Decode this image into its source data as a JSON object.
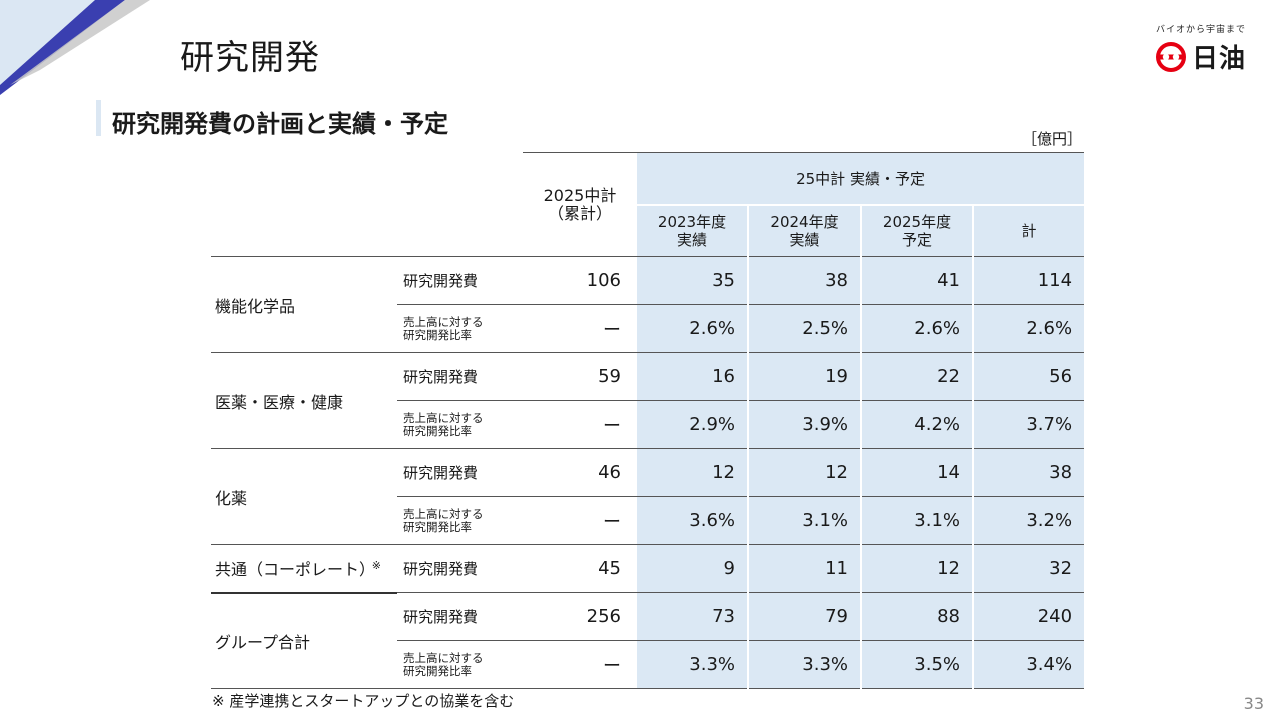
{
  "page": {
    "title": "研究開発",
    "section_title": "研究開発費の計画と実績・予定",
    "unit": "［億円］",
    "footnote": "※ 産学連携とスタートアップとの協業を含む",
    "page_number": "33"
  },
  "logo": {
    "tagline": "バイオから宇宙まで",
    "name": "日油",
    "icon": "nof-logo-mark",
    "color": "#e60012"
  },
  "colors": {
    "accent_blue": "#3a3fb0",
    "header_fill": "#dbe8f4"
  },
  "table": {
    "plan_header": "2025中計\n（累計）",
    "group_header": "25中計 実績・予定",
    "sub_headers": [
      "2023年度\n実績",
      "2024年度\n実績",
      "2025年度\n予定",
      "計"
    ],
    "segments": [
      {
        "name": "機能化学品",
        "rows": [
          {
            "metric": "研究開発費",
            "plan": "106",
            "values": [
              "35",
              "38",
              "41",
              "114"
            ]
          },
          {
            "metric": "売上高に対する\n研究開発比率",
            "plan": "ー",
            "values": [
              "2.6%",
              "2.5%",
              "2.6%",
              "2.6%"
            ]
          }
        ]
      },
      {
        "name": "医薬・医療・健康",
        "rows": [
          {
            "metric": "研究開発費",
            "plan": "59",
            "values": [
              "16",
              "19",
              "22",
              "56"
            ]
          },
          {
            "metric": "売上高に対する\n研究開発比率",
            "plan": "ー",
            "values": [
              "2.9%",
              "3.9%",
              "4.2%",
              "3.7%"
            ]
          }
        ]
      },
      {
        "name": "化薬",
        "rows": [
          {
            "metric": "研究開発費",
            "plan": "46",
            "values": [
              "12",
              "12",
              "14",
              "38"
            ]
          },
          {
            "metric": "売上高に対する\n研究開発比率",
            "plan": "ー",
            "values": [
              "3.6%",
              "3.1%",
              "3.1%",
              "3.2%"
            ]
          }
        ]
      },
      {
        "name": "共通（コーポレート）",
        "note": "※",
        "rows": [
          {
            "metric": "研究開発費",
            "plan": "45",
            "values": [
              "9",
              "11",
              "12",
              "32"
            ]
          }
        ]
      },
      {
        "name": "グループ合計",
        "rows": [
          {
            "metric": "研究開発費",
            "plan": "256",
            "values": [
              "73",
              "79",
              "88",
              "240"
            ]
          },
          {
            "metric": "売上高に対する\n研究開発比率",
            "plan": "ー",
            "values": [
              "3.3%",
              "3.3%",
              "3.5%",
              "3.4%"
            ]
          }
        ]
      }
    ]
  }
}
